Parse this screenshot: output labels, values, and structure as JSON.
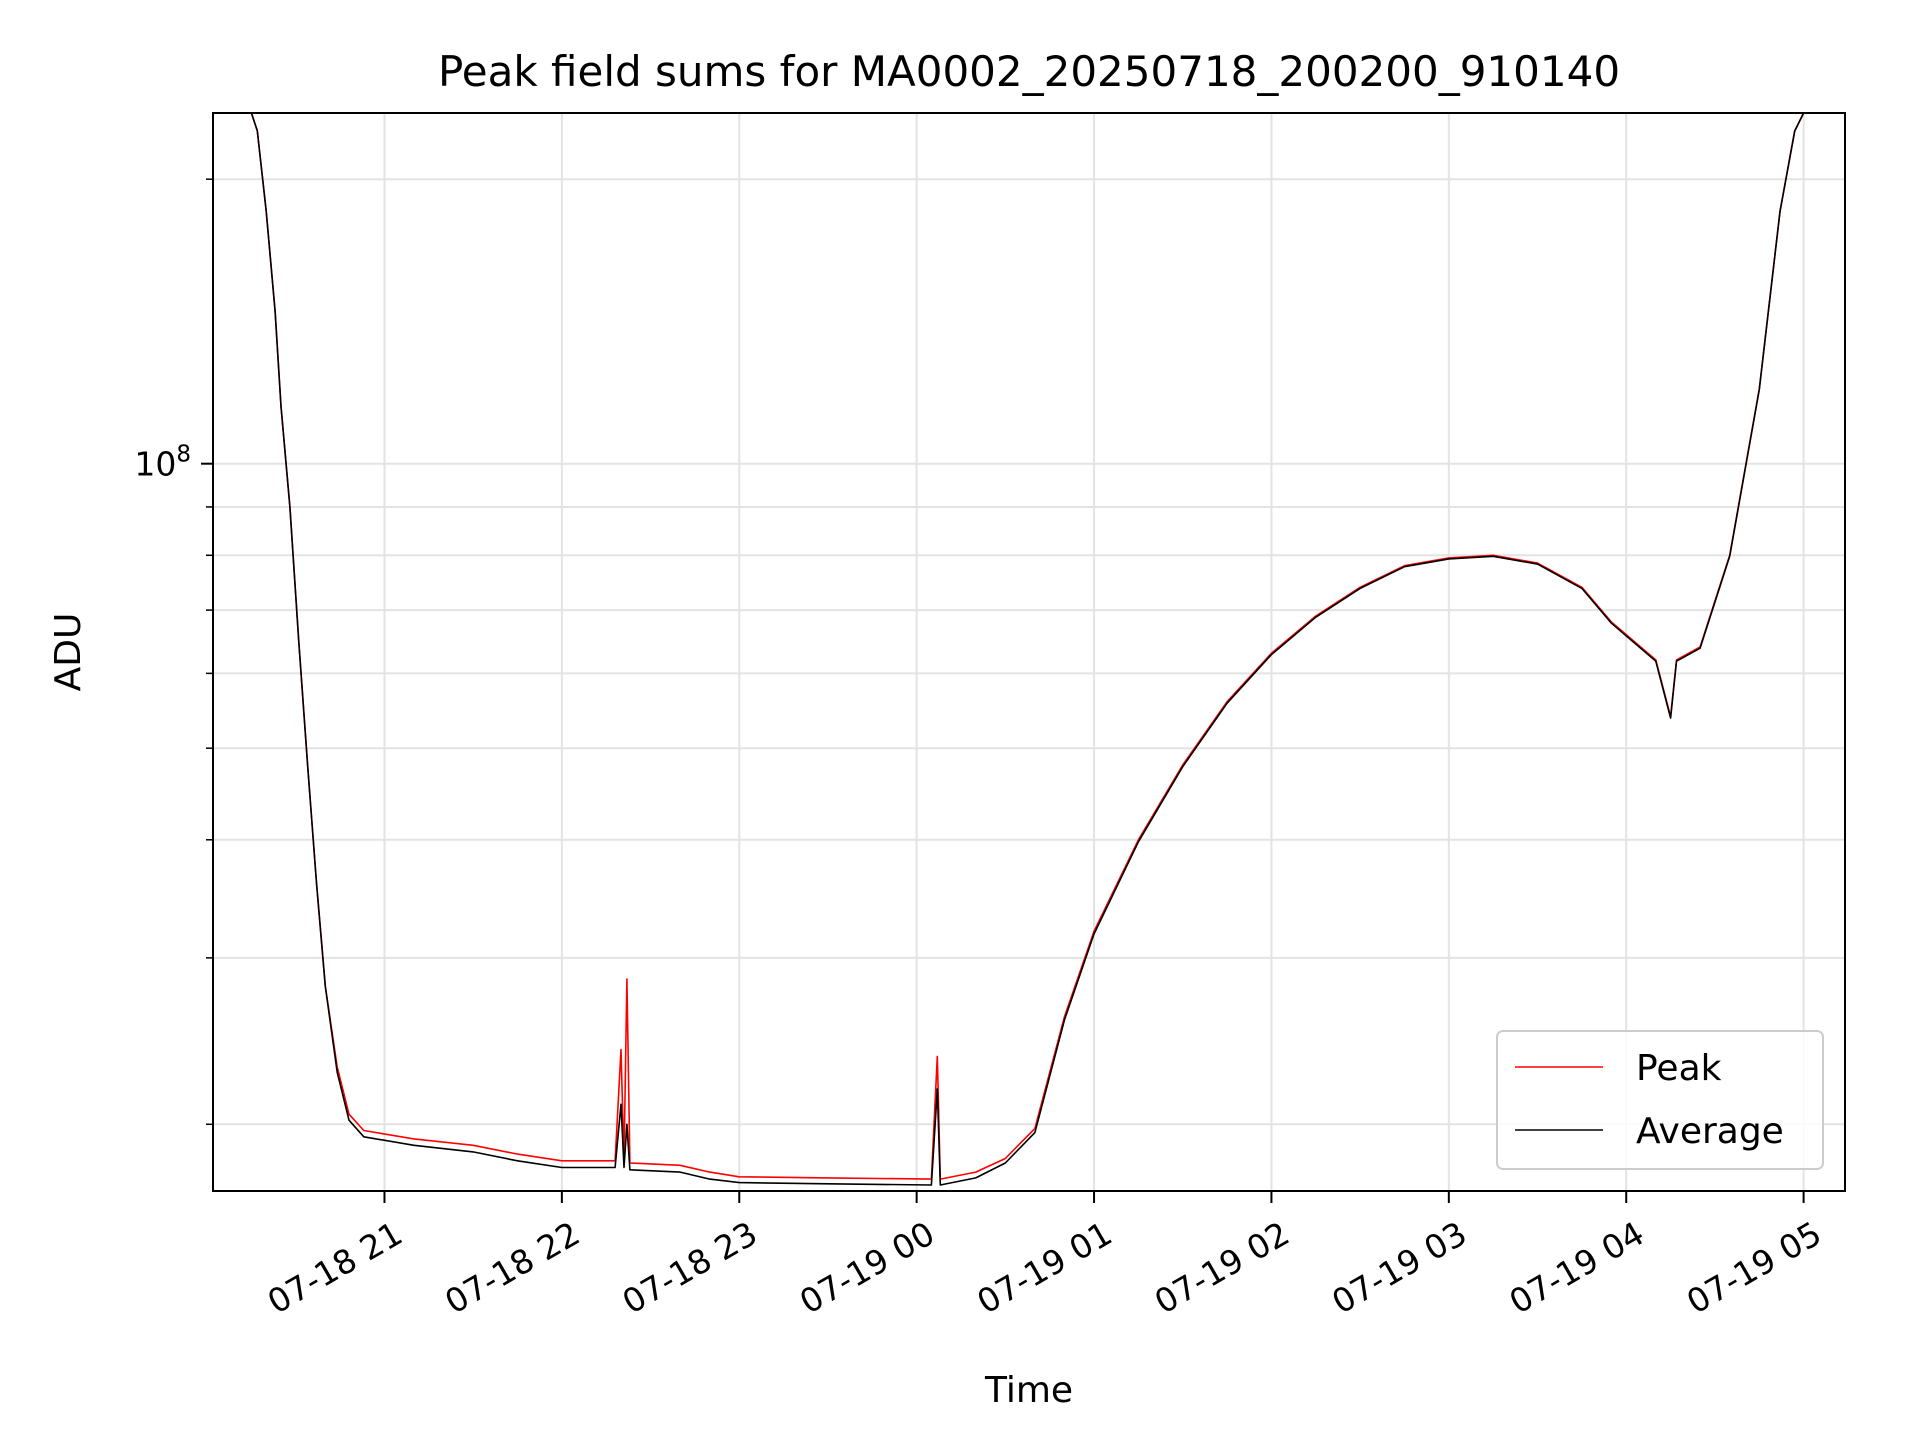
{
  "chart_data": {
    "type": "line",
    "title": "Peak field sums for MA0002_20250718_200200_910140",
    "xlabel": "Time",
    "ylabel": "ADU",
    "y_scale": "log",
    "ylim": [
      17000000,
      235000000
    ],
    "xlim": [
      "2025-07-18T20:02",
      "2025-07-19T05:14"
    ],
    "x_ticks": [
      {
        "t": "2025-07-18T21:00",
        "label": "07-18 21"
      },
      {
        "t": "2025-07-18T22:00",
        "label": "07-18 22"
      },
      {
        "t": "2025-07-18T23:00",
        "label": "07-18 23"
      },
      {
        "t": "2025-07-19T00:00",
        "label": "07-19 00"
      },
      {
        "t": "2025-07-19T01:00",
        "label": "07-19 01"
      },
      {
        "t": "2025-07-19T02:00",
        "label": "07-19 02"
      },
      {
        "t": "2025-07-19T03:00",
        "label": "07-19 03"
      },
      {
        "t": "2025-07-19T04:00",
        "label": "07-19 04"
      },
      {
        "t": "2025-07-19T05:00",
        "label": "07-19 05"
      }
    ],
    "y_major_ticks": [
      {
        "value": 100000000,
        "base": "10",
        "exp": "8"
      }
    ],
    "y_minor_ticks": [
      20000000,
      30000000,
      40000000,
      50000000,
      60000000,
      70000000,
      80000000,
      90000000,
      200000000
    ],
    "grid": true,
    "legend_position": "lower-right",
    "series": [
      {
        "name": "Peak",
        "color": "#ff0000",
        "points": [
          [
            "2025-07-18T20:15",
            235000000
          ],
          [
            "2025-07-18T20:17",
            225000000
          ],
          [
            "2025-07-18T20:20",
            185000000
          ],
          [
            "2025-07-18T20:23",
            145000000
          ],
          [
            "2025-07-18T20:25",
            115000000
          ],
          [
            "2025-07-18T20:28",
            90000000
          ],
          [
            "2025-07-18T20:31",
            65000000
          ],
          [
            "2025-07-18T20:34",
            48000000
          ],
          [
            "2025-07-18T20:37",
            36000000
          ],
          [
            "2025-07-18T20:40",
            28000000
          ],
          [
            "2025-07-18T20:44",
            23000000
          ],
          [
            "2025-07-18T20:48",
            20500000
          ],
          [
            "2025-07-18T20:53",
            19700000
          ],
          [
            "2025-07-18T21:10",
            19300000
          ],
          [
            "2025-07-18T21:30",
            19000000
          ],
          [
            "2025-07-18T21:45",
            18600000
          ],
          [
            "2025-07-18T22:00",
            18300000
          ],
          [
            "2025-07-18T22:18",
            18300000
          ],
          [
            "2025-07-18T22:20",
            24000000
          ],
          [
            "2025-07-18T22:21",
            18300000
          ],
          [
            "2025-07-18T22:22",
            28500000
          ],
          [
            "2025-07-18T22:23",
            18200000
          ],
          [
            "2025-07-18T22:40",
            18100000
          ],
          [
            "2025-07-18T22:50",
            17800000
          ],
          [
            "2025-07-18T23:00",
            17600000
          ],
          [
            "2025-07-18T23:30",
            17550000
          ],
          [
            "2025-07-19T00:05",
            17500000
          ],
          [
            "2025-07-19T00:07",
            23600000
          ],
          [
            "2025-07-19T00:08",
            17500000
          ],
          [
            "2025-07-19T00:20",
            17800000
          ],
          [
            "2025-07-19T00:30",
            18400000
          ],
          [
            "2025-07-19T00:40",
            19800000
          ],
          [
            "2025-07-19T00:50",
            26000000
          ],
          [
            "2025-07-19T01:00",
            32000000
          ],
          [
            "2025-07-19T01:15",
            40000000
          ],
          [
            "2025-07-19T01:30",
            48000000
          ],
          [
            "2025-07-19T01:45",
            56000000
          ],
          [
            "2025-07-19T02:00",
            63000000
          ],
          [
            "2025-07-19T02:15",
            69000000
          ],
          [
            "2025-07-19T02:30",
            74000000
          ],
          [
            "2025-07-19T02:45",
            78000000
          ],
          [
            "2025-07-19T03:00",
            79500000
          ],
          [
            "2025-07-19T03:15",
            80000000
          ],
          [
            "2025-07-19T03:30",
            78500000
          ],
          [
            "2025-07-19T03:45",
            74000000
          ],
          [
            "2025-07-19T03:55",
            68000000
          ],
          [
            "2025-07-19T04:10",
            62000000
          ],
          [
            "2025-07-19T04:15",
            54000000
          ],
          [
            "2025-07-19T04:17",
            62000000
          ],
          [
            "2025-07-19T04:25",
            64000000
          ],
          [
            "2025-07-19T04:35",
            80000000
          ],
          [
            "2025-07-19T04:45",
            120000000
          ],
          [
            "2025-07-19T04:52",
            185000000
          ],
          [
            "2025-07-19T04:57",
            225000000
          ],
          [
            "2025-07-19T05:00",
            235000000
          ],
          [
            "2025-07-19T05:14",
            235000000
          ]
        ]
      },
      {
        "name": "Average",
        "color": "#000000",
        "points": [
          [
            "2025-07-18T20:15",
            235000000
          ],
          [
            "2025-07-18T20:17",
            225000000
          ],
          [
            "2025-07-18T20:20",
            185000000
          ],
          [
            "2025-07-18T20:23",
            145000000
          ],
          [
            "2025-07-18T20:25",
            115000000
          ],
          [
            "2025-07-18T20:28",
            90000000
          ],
          [
            "2025-07-18T20:31",
            65000000
          ],
          [
            "2025-07-18T20:34",
            48000000
          ],
          [
            "2025-07-18T20:37",
            36000000
          ],
          [
            "2025-07-18T20:40",
            28000000
          ],
          [
            "2025-07-18T20:44",
            22700000
          ],
          [
            "2025-07-18T20:48",
            20200000
          ],
          [
            "2025-07-18T20:53",
            19400000
          ],
          [
            "2025-07-18T21:10",
            19000000
          ],
          [
            "2025-07-18T21:30",
            18700000
          ],
          [
            "2025-07-18T21:45",
            18300000
          ],
          [
            "2025-07-18T22:00",
            18000000
          ],
          [
            "2025-07-18T22:18",
            18000000
          ],
          [
            "2025-07-18T22:20",
            21000000
          ],
          [
            "2025-07-18T22:21",
            18000000
          ],
          [
            "2025-07-18T22:22",
            20000000
          ],
          [
            "2025-07-18T22:23",
            17900000
          ],
          [
            "2025-07-18T22:40",
            17800000
          ],
          [
            "2025-07-18T22:50",
            17500000
          ],
          [
            "2025-07-18T23:00",
            17350000
          ],
          [
            "2025-07-18T23:30",
            17300000
          ],
          [
            "2025-07-19T00:05",
            17250000
          ],
          [
            "2025-07-19T00:07",
            21800000
          ],
          [
            "2025-07-19T00:08",
            17250000
          ],
          [
            "2025-07-19T00:20",
            17550000
          ],
          [
            "2025-07-19T00:30",
            18200000
          ],
          [
            "2025-07-19T00:40",
            19600000
          ],
          [
            "2025-07-19T00:50",
            25800000
          ],
          [
            "2025-07-19T01:00",
            31800000
          ],
          [
            "2025-07-19T01:15",
            39800000
          ],
          [
            "2025-07-19T01:30",
            47800000
          ],
          [
            "2025-07-19T01:45",
            55800000
          ],
          [
            "2025-07-19T02:00",
            62800000
          ],
          [
            "2025-07-19T02:15",
            68800000
          ],
          [
            "2025-07-19T02:30",
            73800000
          ],
          [
            "2025-07-19T02:45",
            77800000
          ],
          [
            "2025-07-19T03:00",
            79300000
          ],
          [
            "2025-07-19T03:15",
            79800000
          ],
          [
            "2025-07-19T03:30",
            78300000
          ],
          [
            "2025-07-19T03:45",
            73800000
          ],
          [
            "2025-07-19T03:55",
            67800000
          ],
          [
            "2025-07-19T04:10",
            61800000
          ],
          [
            "2025-07-19T04:15",
            53800000
          ],
          [
            "2025-07-19T04:17",
            61800000
          ],
          [
            "2025-07-19T04:25",
            63800000
          ],
          [
            "2025-07-19T04:35",
            79800000
          ],
          [
            "2025-07-19T04:45",
            119800000
          ],
          [
            "2025-07-19T04:52",
            184800000
          ],
          [
            "2025-07-19T04:57",
            224800000
          ],
          [
            "2025-07-19T05:00",
            235000000
          ],
          [
            "2025-07-19T05:14",
            235000000
          ]
        ]
      }
    ]
  }
}
